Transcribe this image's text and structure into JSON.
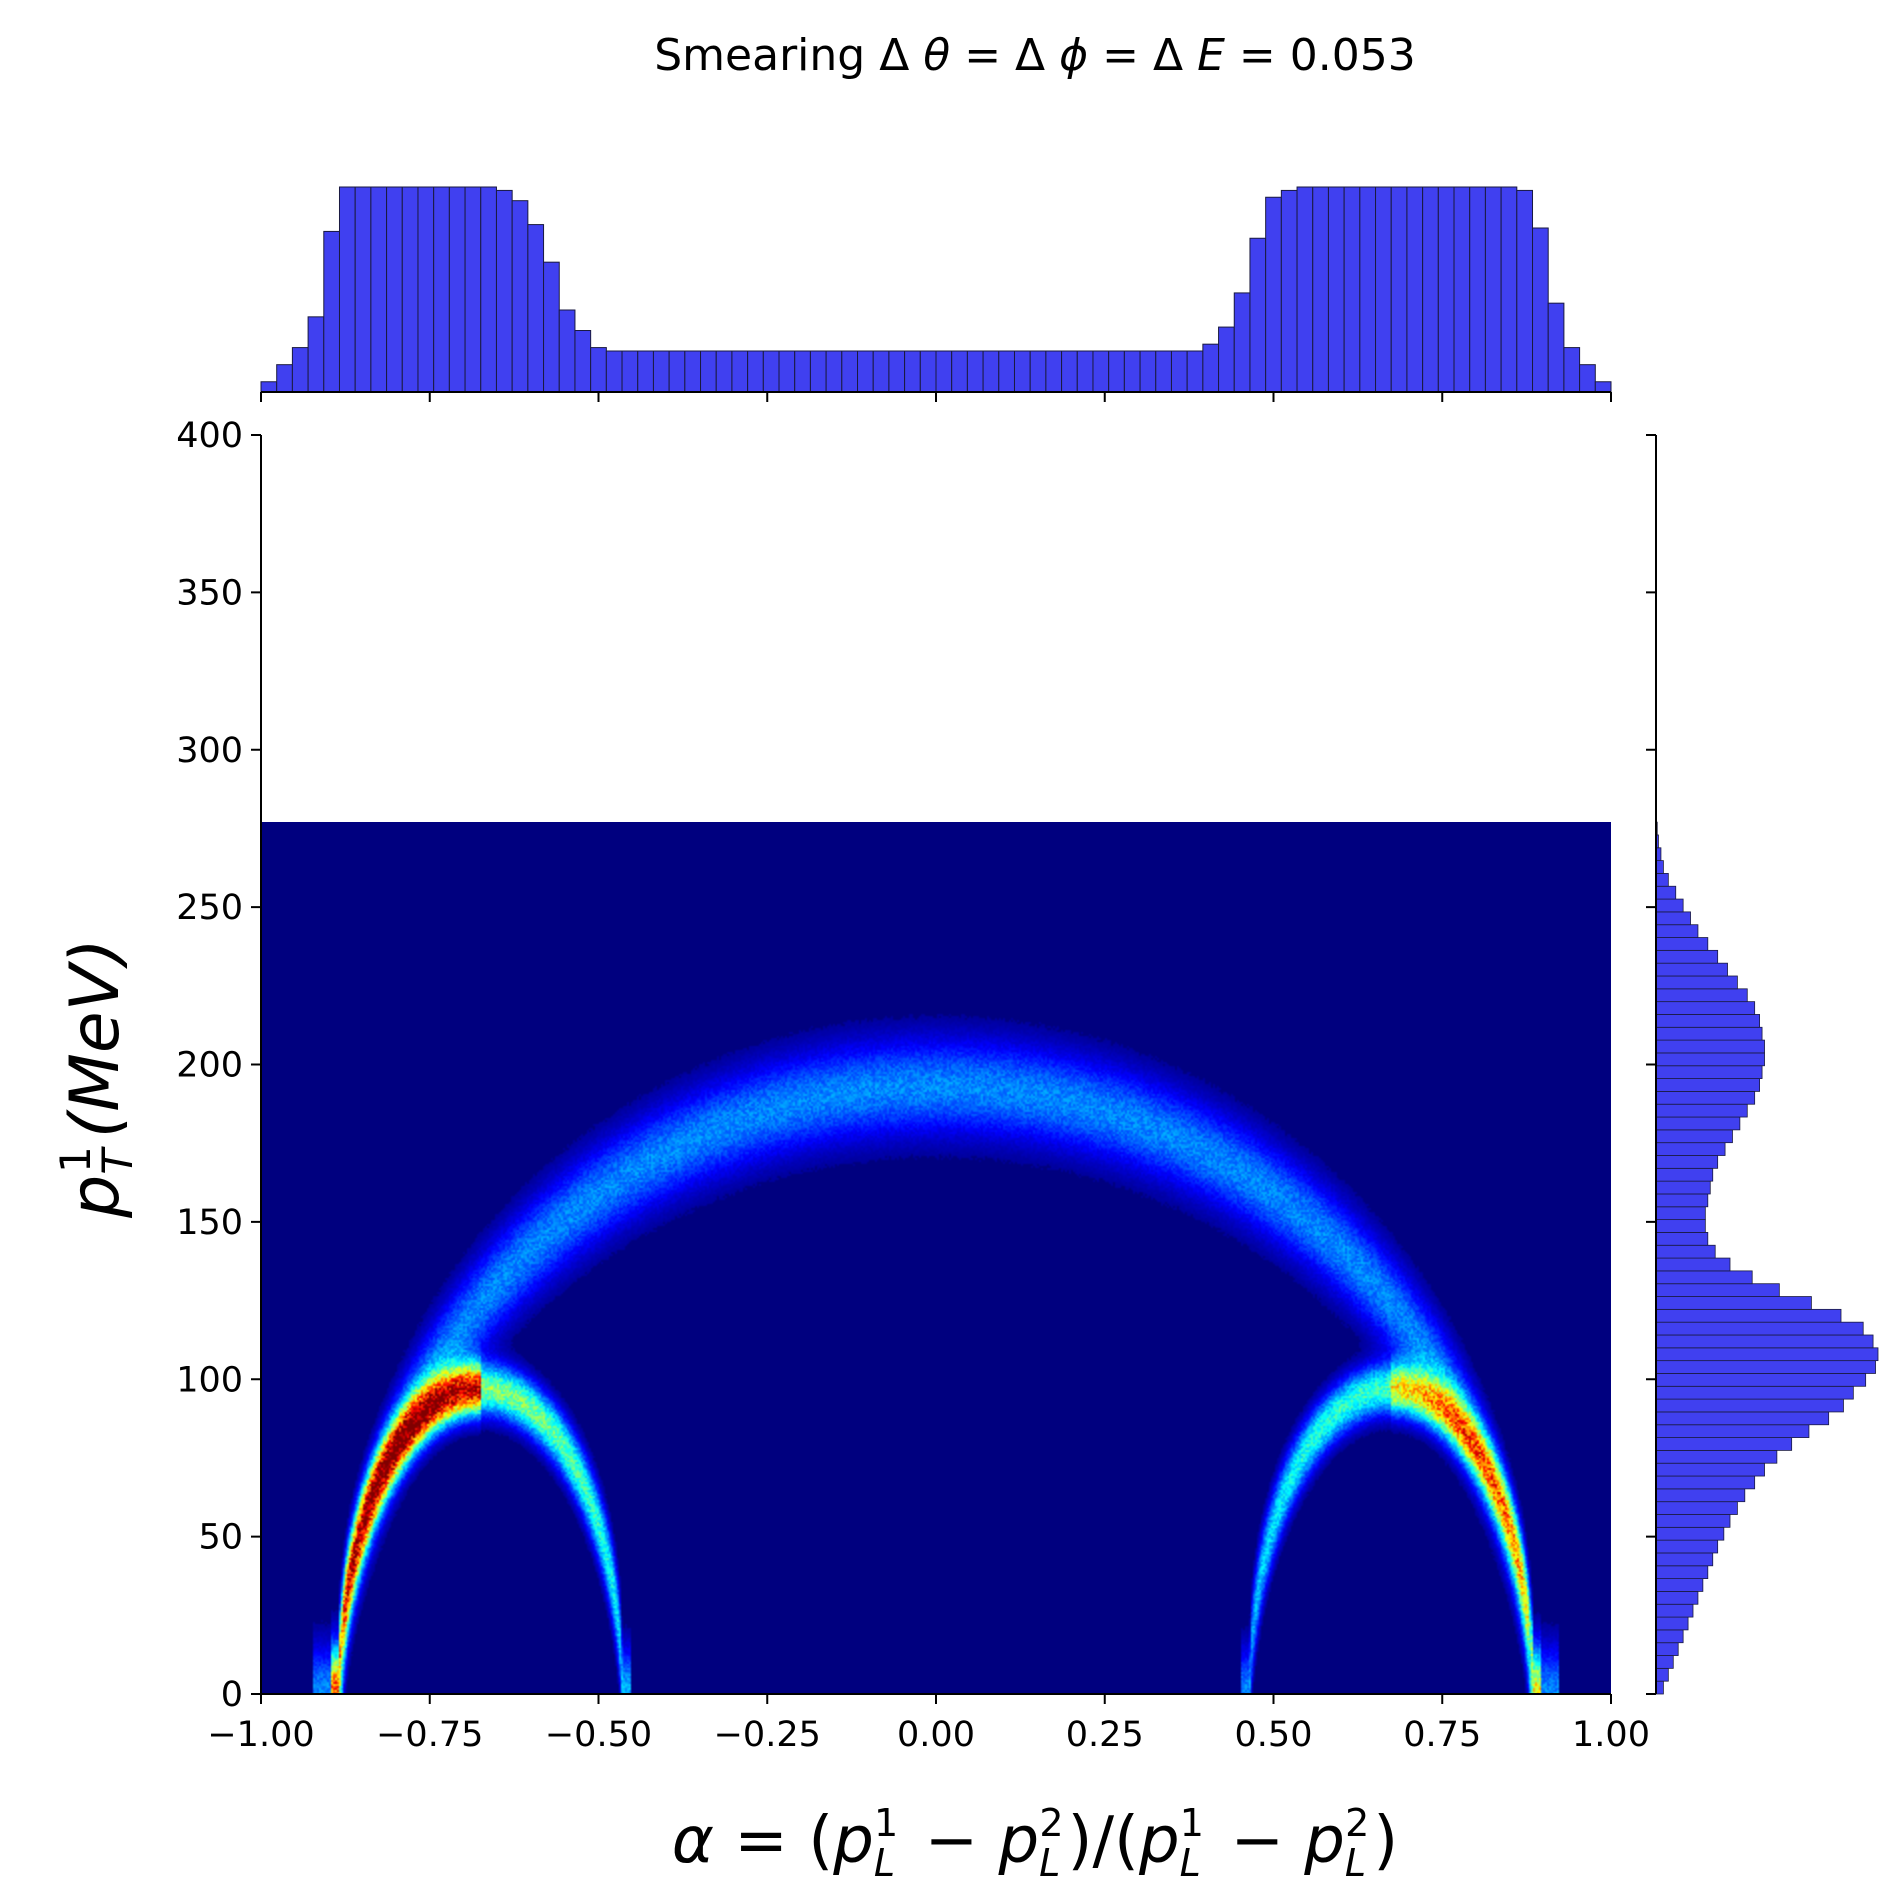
{
  "chart_data": {
    "type": "heatmap",
    "title": "Smearing Δ θ = Δ ϕ = Δ E = 0.053",
    "title_parts": {
      "prefix": "Smearing ",
      "value": "0.053"
    },
    "xlabel": "α = (p_L^1 − p_L^2)/(p_L^1 − p_L^2)",
    "ylabel": "p_T^1(MeV)",
    "xlim": [
      -1.0,
      1.0
    ],
    "ylim": [
      0,
      400
    ],
    "xticks": [
      -1.0,
      -0.75,
      -0.5,
      -0.25,
      0.0,
      0.25,
      0.5,
      0.75,
      1.0
    ],
    "xtick_labels": [
      "−1.00",
      "−0.75",
      "−0.50",
      "−0.25",
      "0.00",
      "0.25",
      "0.50",
      "0.75",
      "1.00"
    ],
    "yticks": [
      0,
      50,
      100,
      150,
      200,
      250,
      300,
      350,
      400
    ],
    "ytick_labels": [
      "0",
      "50",
      "100",
      "150",
      "200",
      "250",
      "300",
      "350",
      "400"
    ],
    "colormap": "jet",
    "background_color": "#00007f",
    "histogram_y_extent": [
      0,
      277
    ],
    "features": [
      {
        "name": "upper arc",
        "alpha_range": [
          -0.85,
          0.85
        ],
        "pt_peak": 193,
        "pt_width": 15,
        "intensity": 0.28
      },
      {
        "name": "left ellipse",
        "alpha_center": -0.675,
        "alpha_half_width": 0.21,
        "pt_peak": 97,
        "pt_width": 8,
        "intensity": 1.0
      },
      {
        "name": "right ellipse",
        "alpha_center": 0.675,
        "alpha_half_width": 0.21,
        "pt_peak": 97,
        "pt_width": 8,
        "intensity": 0.85
      }
    ],
    "marginal_x": {
      "bin_edges_range": [
        -1.0,
        1.0
      ],
      "counts": [
        3,
        8,
        13,
        22,
        47,
        60,
        60,
        60,
        60,
        60,
        60,
        60,
        60,
        60,
        60,
        59,
        56,
        49,
        38,
        24,
        18,
        13,
        12,
        12,
        12,
        12,
        12,
        12,
        12,
        12,
        12,
        12,
        12,
        12,
        12,
        12,
        12,
        12,
        12,
        12,
        12,
        12,
        12,
        12,
        12,
        12,
        12,
        12,
        12,
        12,
        12,
        12,
        12,
        12,
        12,
        12,
        12,
        12,
        12,
        12,
        14,
        19,
        29,
        45,
        57,
        59,
        60,
        60,
        60,
        60,
        60,
        60,
        60,
        60,
        60,
        60,
        60,
        60,
        60,
        60,
        59,
        48,
        26,
        13,
        8,
        3
      ]
    },
    "marginal_y": {
      "bin_edges_range": [
        0,
        277
      ],
      "counts": [
        6,
        10,
        14,
        18,
        22,
        26,
        30,
        34,
        38,
        42,
        46,
        50,
        55,
        60,
        66,
        72,
        80,
        88,
        98,
        110,
        124,
        140,
        152,
        160,
        170,
        178,
        180,
        176,
        168,
        150,
        126,
        100,
        78,
        60,
        48,
        42,
        40,
        40,
        42,
        44,
        46,
        50,
        56,
        62,
        68,
        74,
        80,
        84,
        86,
        88,
        88,
        86,
        84,
        80,
        74,
        66,
        58,
        50,
        42,
        34,
        28,
        22,
        16,
        10,
        6,
        4,
        2,
        1
      ]
    },
    "marginal_color": "#4040f0"
  }
}
